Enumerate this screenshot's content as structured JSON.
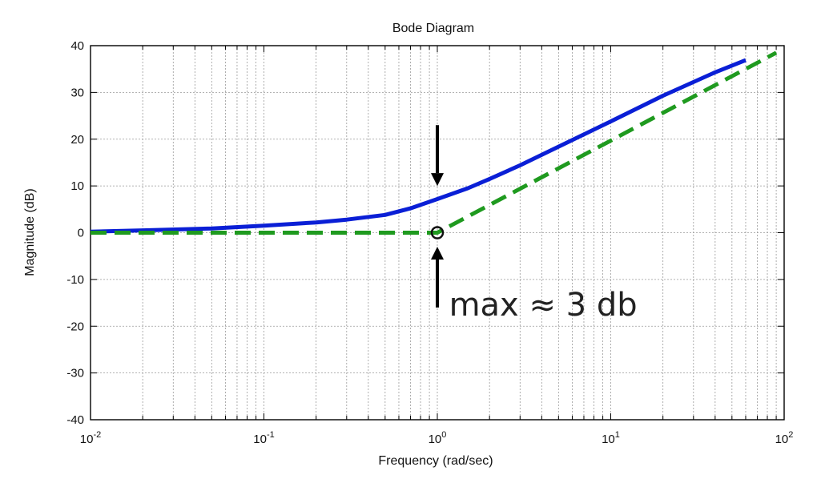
{
  "chart_data": {
    "type": "line",
    "title": "Bode Diagram",
    "xlabel": "Frequency (rad/sec)",
    "ylabel": "Magnitude (dB)",
    "xscale": "log",
    "xlim": [
      0.01,
      100
    ],
    "ylim": [
      -40,
      40
    ],
    "grid": true,
    "x_tick_labels": [
      {
        "base": "10",
        "exp": "-2",
        "value": 0.01
      },
      {
        "base": "10",
        "exp": "-1",
        "value": 0.1
      },
      {
        "base": "10",
        "exp": "0",
        "value": 1
      },
      {
        "base": "10",
        "exp": "1",
        "value": 10
      },
      {
        "base": "10",
        "exp": "2",
        "value": 100
      }
    ],
    "y_tick_labels": [
      "40",
      "30",
      "20",
      "10",
      "0",
      "-10",
      "-20",
      "-30",
      "-40"
    ],
    "y_tick_values": [
      40,
      30,
      20,
      10,
      0,
      -10,
      -20,
      -30,
      -40
    ],
    "series": [
      {
        "color": "#0a1fd6",
        "style": "solid",
        "x": [
          0.01,
          0.02,
          0.05,
          0.1,
          0.2,
          0.3,
          0.5,
          0.7,
          1,
          1.5,
          2,
          3,
          5,
          10,
          20,
          40,
          60
        ],
        "y": [
          0.2,
          0.5,
          0.9,
          1.5,
          2.2,
          2.8,
          3.8,
          5.2,
          7.2,
          9.5,
          11.5,
          14.4,
          18.4,
          23.8,
          29.3,
          34.3,
          36.9
        ]
      },
      {
        "color": "#1f9a1f",
        "style": "dashed",
        "x": [
          0.01,
          1,
          90
        ],
        "y": [
          0,
          0,
          38.5
        ]
      }
    ],
    "markers": [
      {
        "x": 1,
        "y": 0,
        "shape": "circle",
        "color": "#111111"
      }
    ],
    "arrows": [
      {
        "x": 1,
        "y_from": 23,
        "y_to": 10,
        "direction": "down"
      },
      {
        "x": 1,
        "y_from": -16,
        "y_to": -3,
        "direction": "up"
      }
    ],
    "annotations": [
      {
        "text": "max ≈ 3 db",
        "x": 1.05,
        "y": -16
      }
    ]
  }
}
